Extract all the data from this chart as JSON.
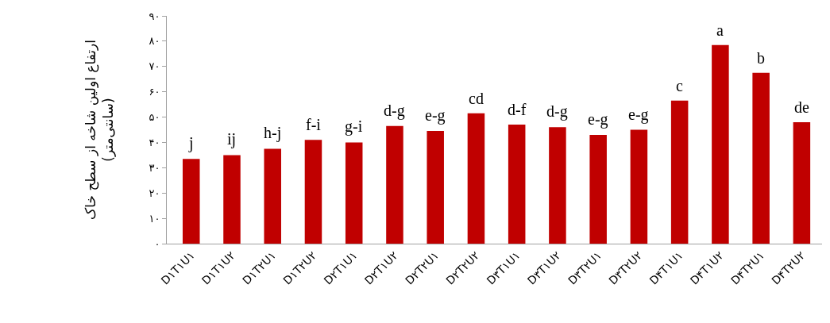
{
  "chart_data": {
    "type": "bar",
    "ylabel": "ارتفاع اولین شاخه از سطح خاک\n(سانتی‌متر)",
    "categories": [
      "D۱T۱U۱",
      "D۱T۱U۲",
      "D۱T۲U۱",
      "D۱T۲U۲",
      "D۲T۱U۱",
      "D۲T۱U۲",
      "D۲T۲U۱",
      "D۲T۲U۲",
      "D۳T۱U۱",
      "D۳T۱U۲",
      "D۳T۲U۱",
      "D۳T۲U۲",
      "D۴T۱U۱",
      "D۴T۱U۲",
      "D۴T۲U۱",
      "D۴T۲U۲"
    ],
    "values": [
      33.5,
      35,
      37.5,
      41,
      40,
      46.5,
      44.5,
      51.5,
      47,
      46,
      43,
      45,
      56.5,
      78.5,
      67.5,
      48
    ],
    "color": "#c00000",
    "ylim": [
      0,
      90
    ],
    "yticks": [
      {
        "value": 0,
        "label": "۰"
      },
      {
        "value": 10,
        "label": "۱۰"
      },
      {
        "value": 20,
        "label": "۲۰"
      },
      {
        "value": 30,
        "label": "۳۰"
      },
      {
        "value": 40,
        "label": "۴۰"
      },
      {
        "value": 50,
        "label": "۵۰"
      },
      {
        "value": 60,
        "label": "۶۰"
      },
      {
        "value": 70,
        "label": "۷۰"
      },
      {
        "value": 80,
        "label": "۸۰"
      },
      {
        "value": 90,
        "label": "۹۰"
      }
    ],
    "annotations": [
      {
        "text": "j",
        "x": "D۱T۱U۱",
        "y": 33.5
      },
      {
        "text": "ij",
        "x": "D۱T۱U۲",
        "y": 35
      },
      {
        "text": "h-j",
        "x": "D۱T۲U۱",
        "y": 37.5
      },
      {
        "text": "f-i",
        "x": "D۱T۲U۲",
        "y": 41
      },
      {
        "text": "g-i",
        "x": "D۲T۱U۱",
        "y": 40
      },
      {
        "text": "d-g",
        "x": "D۲T۱U۲",
        "y": 46.5
      },
      {
        "text": "e-g",
        "x": "D۲T۲U۱",
        "y": 44.5
      },
      {
        "text": "cd",
        "x": "D۲T۲U۲",
        "y": 51.5
      },
      {
        "text": "d-f",
        "x": "D۳T۱U۱",
        "y": 47
      },
      {
        "text": "d-g",
        "x": "D۳T۱U۲",
        "y": 46
      },
      {
        "text": "e-g",
        "x": "D۳T۲U۱",
        "y": 43
      },
      {
        "text": "e-g",
        "x": "D۳T۲U۲",
        "y": 45
      },
      {
        "text": "c",
        "x": "D۴T۱U۱",
        "y": 56.5
      },
      {
        "text": "a",
        "x": "D۴T۱U۲",
        "y": 78.5
      },
      {
        "text": "b",
        "x": "D۴T۲U۱",
        "y": 67.5
      },
      {
        "text": "de",
        "x": "D۴T۲U۲",
        "y": 48
      }
    ],
    "grid": false,
    "legend": false
  }
}
